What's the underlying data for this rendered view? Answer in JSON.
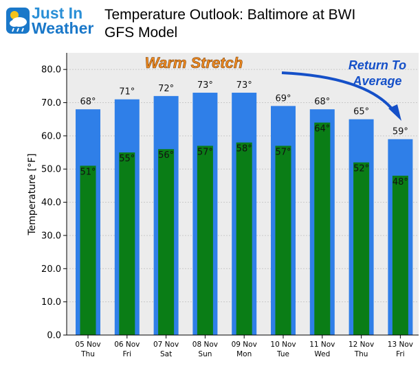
{
  "header": {
    "logo_line1": "Just In",
    "logo_line2": "Weather",
    "title_line1": "Temperature Outlook: Baltimore at BWI",
    "title_line2": "GFS Model"
  },
  "annotations": {
    "warm_stretch": "Warm Stretch",
    "return_line1": "Return To",
    "return_line2": "Average"
  },
  "colors": {
    "high_bar": "#2f7fe8",
    "low_bar": "#0a7d16",
    "plot_bg": "#ececec",
    "warm_text": "#ee8a22",
    "return_text": "#1550c8",
    "arrow": "#1550c8"
  },
  "chart_data": {
    "type": "bar",
    "title": "",
    "xlabel": "",
    "ylabel": "Temperature [°F]",
    "ylim": [
      0,
      85
    ],
    "yticks": [
      0,
      10,
      20,
      30,
      40,
      50,
      60,
      70,
      80
    ],
    "ytick_labels": [
      "0.0",
      "10.0",
      "20.0",
      "30.0",
      "40.0",
      "50.0",
      "60.0",
      "70.0",
      "80.0"
    ],
    "categories": [
      {
        "date": "05 Nov",
        "day": "Thu"
      },
      {
        "date": "06 Nov",
        "day": "Fri"
      },
      {
        "date": "07 Nov",
        "day": "Sat"
      },
      {
        "date": "08 Nov",
        "day": "Sun"
      },
      {
        "date": "09 Nov",
        "day": "Mon"
      },
      {
        "date": "10 Nov",
        "day": "Tue"
      },
      {
        "date": "11 Nov",
        "day": "Wed"
      },
      {
        "date": "12 Nov",
        "day": "Thu"
      },
      {
        "date": "13 Nov",
        "day": "Fri"
      }
    ],
    "series": [
      {
        "values": [
          68,
          71,
          72,
          73,
          73,
          69,
          68,
          65,
          59
        ],
        "labels": [
          "68°",
          "71°",
          "72°",
          "73°",
          "73°",
          "69°",
          "68°",
          "65°",
          "59°"
        ]
      },
      {
        "values": [
          51,
          55,
          56,
          57,
          58,
          57,
          64,
          52,
          48
        ],
        "labels": [
          "51°",
          "55°",
          "56°",
          "57°",
          "58°",
          "57°",
          "64°",
          "52°",
          "48°"
        ]
      }
    ],
    "grid": true,
    "legend": "none"
  }
}
